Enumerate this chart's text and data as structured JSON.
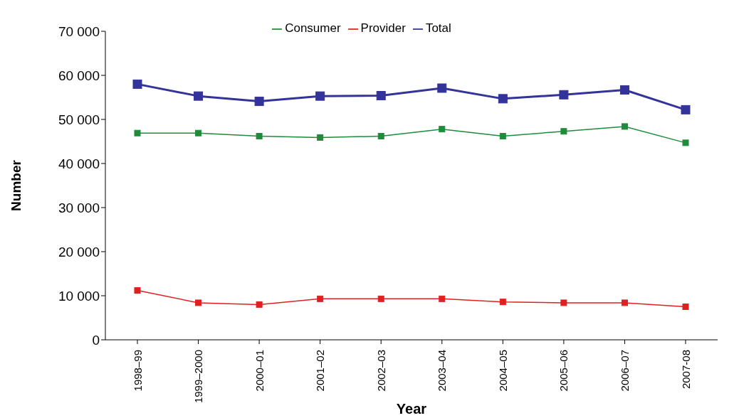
{
  "chart_data": {
    "type": "line",
    "xlabel": "Year",
    "ylabel": "Number",
    "categories": [
      "1998–99",
      "1999–2000",
      "2000–01",
      "2001–02",
      "2002–03",
      "2003–04",
      "2004–05",
      "2005–06",
      "2006–07",
      "2007-08"
    ],
    "series": [
      {
        "name": "Total",
        "color": "#333399",
        "values": [
          58000,
          55300,
          54100,
          55300,
          55400,
          57100,
          54700,
          55600,
          56700,
          52200
        ]
      },
      {
        "name": "Consumer",
        "color": "#1e8c3a",
        "values": [
          46900,
          46900,
          46200,
          45900,
          46200,
          47800,
          46200,
          47300,
          48400,
          44700
        ]
      },
      {
        "name": "Provider",
        "color": "#e02020",
        "values": [
          11200,
          8400,
          8000,
          9300,
          9300,
          9300,
          8600,
          8400,
          8400,
          7500
        ]
      }
    ],
    "ylim": [
      0,
      70000
    ],
    "yticks": [
      0,
      {
        "value": 10000,
        "label": "10 000"
      },
      {
        "value": 20000,
        "label": "20 000"
      },
      {
        "value": 30000,
        "label": "30 000"
      },
      {
        "value": 40000,
        "label": "40 000"
      },
      {
        "value": 50000,
        "label": "50 000"
      },
      {
        "value": 60000,
        "label": "60 000"
      },
      {
        "value": 70000,
        "label": "70 000"
      }
    ],
    "grid": false,
    "legend": "top",
    "marker": "square",
    "line_style": "solid"
  }
}
